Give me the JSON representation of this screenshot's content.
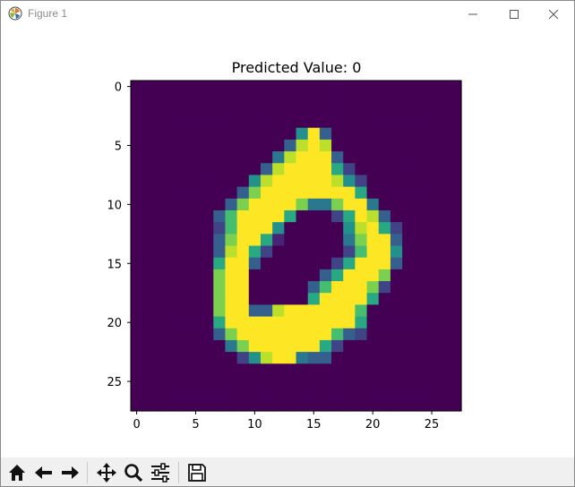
{
  "window": {
    "title": "Figure 1"
  },
  "toolbar": {
    "buttons": [
      {
        "icon": "home-icon"
      },
      {
        "icon": "back-arrow-icon"
      },
      {
        "icon": "forward-arrow-icon"
      },
      {
        "icon": "pan-icon"
      },
      {
        "icon": "zoom-icon"
      },
      {
        "icon": "subplots-icon"
      },
      {
        "icon": "save-icon"
      }
    ]
  },
  "chart_data": {
    "type": "heatmap",
    "title": "Predicted Value: 0",
    "colormap": "viridis",
    "xticks": [
      0,
      5,
      10,
      15,
      20,
      25
    ],
    "yticks": [
      0,
      5,
      10,
      15,
      20,
      25
    ],
    "xlim": [
      -0.5,
      27.5
    ],
    "ylim": [
      27.5,
      -0.5
    ],
    "grid": false,
    "legend": "none",
    "values": [
      [
        0,
        0,
        0,
        0,
        0,
        0,
        0,
        0,
        0,
        0,
        0,
        0,
        0,
        0,
        0,
        0,
        0,
        0,
        0,
        0,
        0,
        0,
        0,
        0,
        0,
        0,
        0,
        0
      ],
      [
        0,
        0,
        0,
        0,
        0,
        0,
        0,
        0,
        0,
        0,
        0,
        0,
        0,
        0,
        0,
        0,
        0,
        0,
        0,
        0,
        0,
        0,
        0,
        0,
        0,
        0,
        0,
        0
      ],
      [
        0,
        0,
        0,
        0,
        0,
        0,
        0,
        0,
        0,
        0,
        0,
        0,
        0,
        0,
        0,
        0,
        0,
        0,
        0,
        0,
        0,
        0,
        0,
        0,
        0,
        0,
        0,
        0
      ],
      [
        0,
        0,
        0,
        0,
        0,
        0,
        0,
        0,
        0,
        0,
        0,
        0,
        0,
        0,
        0,
        0,
        0,
        0,
        0,
        0,
        0,
        0,
        0,
        0,
        0,
        0,
        0,
        0
      ],
      [
        0,
        0,
        0,
        0,
        0,
        0,
        0,
        0,
        0,
        0,
        0,
        0,
        0,
        0,
        0.5,
        1,
        0.3,
        0,
        0,
        0,
        0,
        0,
        0,
        0,
        0,
        0,
        0,
        0
      ],
      [
        0,
        0,
        0,
        0,
        0,
        0,
        0,
        0,
        0,
        0,
        0,
        0,
        0,
        0.3,
        0.9,
        1,
        0.9,
        0,
        0,
        0,
        0,
        0,
        0,
        0,
        0,
        0,
        0,
        0
      ],
      [
        0,
        0,
        0,
        0,
        0,
        0,
        0,
        0,
        0,
        0,
        0,
        0,
        0.4,
        0.9,
        1,
        1,
        1,
        0.3,
        0,
        0,
        0,
        0,
        0,
        0,
        0,
        0,
        0,
        0
      ],
      [
        0,
        0,
        0,
        0,
        0,
        0,
        0,
        0,
        0,
        0,
        0,
        0.3,
        0.9,
        1,
        1,
        1,
        1,
        0.6,
        0.2,
        0,
        0,
        0,
        0,
        0,
        0,
        0,
        0,
        0
      ],
      [
        0,
        0,
        0,
        0,
        0,
        0,
        0,
        0,
        0,
        0,
        0.5,
        0.9,
        1,
        1,
        1,
        1,
        1,
        0.9,
        0.5,
        0.2,
        0,
        0,
        0,
        0,
        0,
        0,
        0,
        0
      ],
      [
        0,
        0,
        0,
        0,
        0,
        0,
        0,
        0,
        0,
        0.3,
        0.8,
        1,
        1,
        1,
        1,
        1,
        1,
        1,
        1,
        0.6,
        0,
        0,
        0,
        0,
        0,
        0,
        0,
        0
      ],
      [
        0,
        0,
        0,
        0,
        0,
        0,
        0,
        0,
        0.3,
        0.8,
        1,
        1,
        1,
        1,
        0.8,
        0.4,
        0.4,
        0.8,
        1,
        1,
        0.4,
        0,
        0,
        0,
        0,
        0,
        0,
        0
      ],
      [
        0,
        0,
        0,
        0,
        0,
        0,
        0,
        0.3,
        0.7,
        1,
        1,
        1,
        1,
        0.6,
        0,
        0,
        0,
        0.2,
        0.6,
        1,
        0.9,
        0.3,
        0,
        0,
        0,
        0,
        0,
        0
      ],
      [
        0,
        0,
        0,
        0,
        0,
        0,
        0,
        0.2,
        0.7,
        1,
        1,
        1,
        0.5,
        0,
        0,
        0,
        0,
        0,
        0.5,
        0.9,
        1,
        0.6,
        0.2,
        0,
        0,
        0,
        0,
        0
      ],
      [
        0,
        0,
        0,
        0,
        0,
        0,
        0,
        0.3,
        0.8,
        1,
        1,
        0.6,
        0.1,
        0,
        0,
        0,
        0,
        0,
        0.4,
        0.8,
        1,
        1,
        0.3,
        0,
        0,
        0,
        0,
        0
      ],
      [
        0,
        0,
        0,
        0,
        0,
        0,
        0,
        0.3,
        0.9,
        1,
        0.6,
        0.2,
        0,
        0,
        0,
        0,
        0,
        0,
        0.2,
        0.7,
        1,
        1,
        0.5,
        0,
        0,
        0,
        0,
        0
      ],
      [
        0,
        0,
        0,
        0,
        0,
        0,
        0,
        0.6,
        1,
        1,
        0.3,
        0,
        0,
        0,
        0,
        0,
        0,
        0.2,
        0.6,
        1,
        1,
        1,
        0.3,
        0,
        0,
        0,
        0,
        0
      ],
      [
        0,
        0,
        0,
        0,
        0,
        0,
        0,
        0.8,
        1,
        1,
        0,
        0,
        0,
        0,
        0,
        0,
        0.3,
        0.6,
        1,
        1,
        1,
        0.8,
        0,
        0,
        0,
        0,
        0,
        0
      ],
      [
        0,
        0,
        0,
        0,
        0,
        0,
        0,
        0.8,
        1,
        1,
        0,
        0,
        0,
        0,
        0,
        0.3,
        0.7,
        1,
        1,
        1,
        0.8,
        0.2,
        0,
        0,
        0,
        0,
        0,
        0
      ],
      [
        0,
        0,
        0,
        0,
        0,
        0,
        0,
        0.8,
        1,
        1,
        0,
        0,
        0,
        0,
        0,
        0.6,
        1,
        1,
        1,
        1,
        0.6,
        0,
        0,
        0,
        0,
        0,
        0,
        0
      ],
      [
        0,
        0,
        0,
        0,
        0,
        0,
        0,
        0.8,
        1,
        1,
        0.3,
        0.3,
        0.9,
        1,
        1,
        1,
        1,
        1,
        1,
        0.7,
        0,
        0,
        0,
        0,
        0,
        0,
        0,
        0
      ],
      [
        0,
        0,
        0,
        0,
        0,
        0,
        0,
        0.6,
        1,
        1,
        1,
        1,
        1,
        1,
        1,
        1,
        1,
        1,
        1,
        0.6,
        0,
        0,
        0,
        0,
        0,
        0,
        0,
        0
      ],
      [
        0,
        0,
        0,
        0,
        0,
        0,
        0,
        0.3,
        0.8,
        1,
        1,
        1,
        1,
        1,
        1,
        1,
        1,
        0.7,
        0.3,
        0.2,
        0,
        0,
        0,
        0,
        0,
        0,
        0,
        0
      ],
      [
        0,
        0,
        0,
        0,
        0,
        0,
        0,
        0,
        0.4,
        0.8,
        1,
        1,
        1,
        1,
        1,
        1,
        0.6,
        0.2,
        0,
        0,
        0,
        0,
        0,
        0,
        0,
        0,
        0,
        0
      ],
      [
        0,
        0,
        0,
        0,
        0,
        0,
        0,
        0,
        0,
        0.2,
        0.5,
        0.9,
        1,
        1,
        0.4,
        0.3,
        0.3,
        0,
        0,
        0,
        0,
        0,
        0,
        0,
        0,
        0,
        0,
        0
      ],
      [
        0,
        0,
        0,
        0,
        0,
        0,
        0,
        0,
        0,
        0,
        0,
        0,
        0,
        0,
        0,
        0,
        0,
        0,
        0,
        0,
        0,
        0,
        0,
        0,
        0,
        0,
        0,
        0
      ],
      [
        0,
        0,
        0,
        0,
        0,
        0,
        0,
        0,
        0,
        0,
        0,
        0,
        0,
        0,
        0,
        0,
        0,
        0,
        0,
        0,
        0,
        0,
        0,
        0,
        0,
        0,
        0,
        0
      ],
      [
        0,
        0,
        0,
        0,
        0,
        0,
        0,
        0,
        0,
        0,
        0,
        0,
        0,
        0,
        0,
        0,
        0,
        0,
        0,
        0,
        0,
        0,
        0,
        0,
        0,
        0,
        0,
        0
      ],
      [
        0,
        0,
        0,
        0,
        0,
        0,
        0,
        0,
        0,
        0,
        0,
        0,
        0,
        0,
        0,
        0,
        0,
        0,
        0,
        0,
        0,
        0,
        0,
        0,
        0,
        0,
        0,
        0
      ]
    ]
  }
}
